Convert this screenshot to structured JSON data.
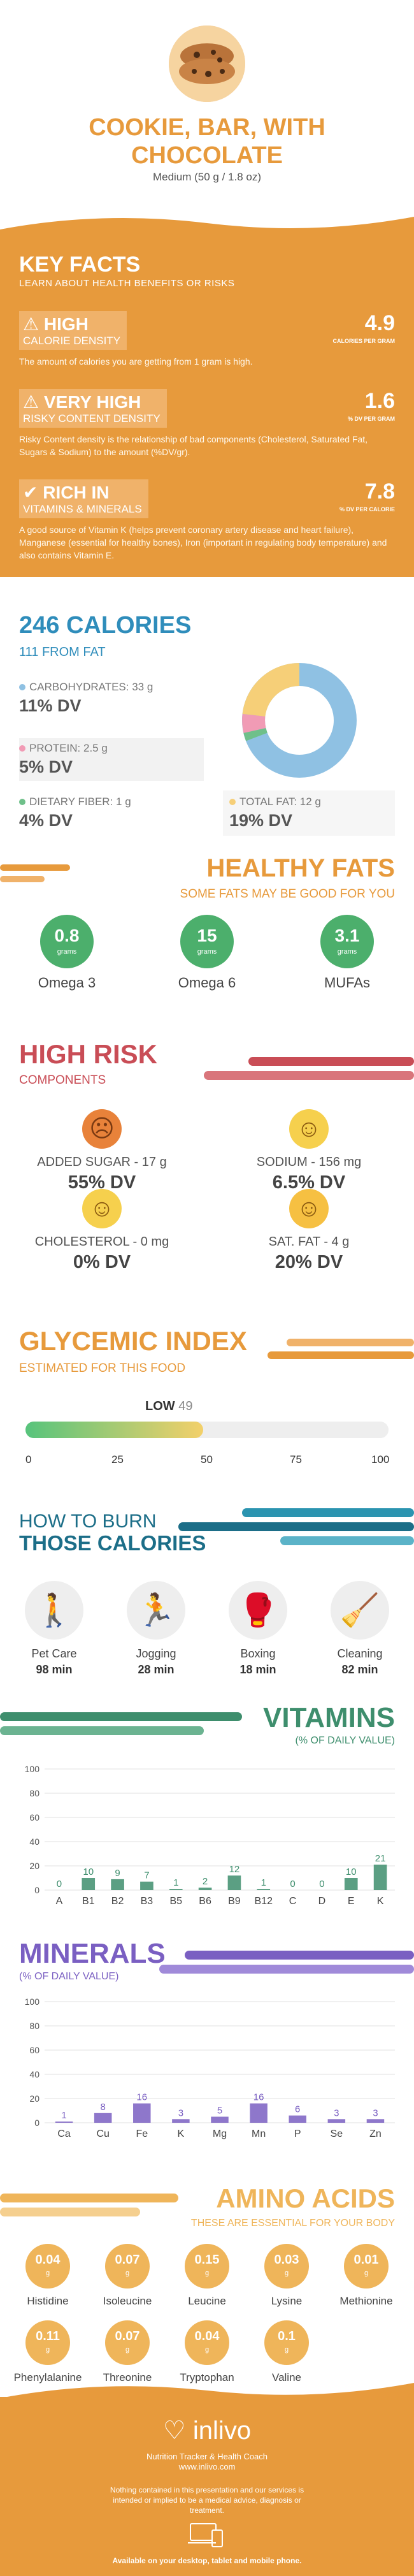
{
  "header": {
    "title_line1": "COOKIE, BAR, WITH",
    "title_line2": "CHOCOLATE",
    "serving": "Medium (50 g / 1.8 oz)"
  },
  "key_facts": {
    "title": "KEY FACTS",
    "subtitle": "LEARN ABOUT HEALTH BENEFITS OR RISKS",
    "items": [
      {
        "level": "HIGH",
        "label": "CALORIE DENSITY",
        "value": "4.9",
        "unit": "CALORIES PER GRAM",
        "desc": "The amount of calories you are getting from 1 gram is high."
      },
      {
        "level": "VERY HIGH",
        "label": "RISKY CONTENT DENSITY",
        "value": "1.6",
        "unit": "% DV PER GRAM",
        "desc": "Risky Content density is the relationship of bad components (Cholesterol, Saturated Fat, Sugars & Sodium) to the amount (%DV/gr)."
      },
      {
        "level": "RICH IN",
        "label": "VITAMINS & MINERALS",
        "value": "7.8",
        "unit": "% DV PER CALORIE",
        "desc": "A good source of Vitamin K (helps prevent coronary artery disease and heart failure), Manganese (essential for healthy bones), Iron (important in regulating body temperature) and also contains Vitamin E."
      }
    ]
  },
  "calories": {
    "title": "246 CALORIES",
    "from_fat": "111 FROM FAT",
    "nutrients": [
      {
        "name": "CARBOHYDRATES: 33 g",
        "dv": "11% DV",
        "color": "#8fc1e3"
      },
      {
        "name": "PROTEIN: 2.5 g",
        "dv": "5% DV",
        "color": "#f19bb5"
      },
      {
        "name": "DIETARY FIBER: 1 g",
        "dv": "4% DV",
        "color": "#6fc08a"
      },
      {
        "name": "TOTAL FAT: 12 g",
        "dv": "19% DV",
        "color": "#f6cf78"
      }
    ]
  },
  "healthy_fats": {
    "title": "HEALTHY FATS",
    "subtitle": "SOME FATS MAY BE GOOD FOR YOU",
    "items": [
      {
        "value": "0.8",
        "unit": "grams",
        "label": "Omega 3"
      },
      {
        "value": "15",
        "unit": "grams",
        "label": "Omega 6"
      },
      {
        "value": "3.1",
        "unit": "grams",
        "label": "MUFAs"
      }
    ]
  },
  "high_risk": {
    "title": "HIGH RISK",
    "subtitle": "COMPONENTS",
    "items": [
      {
        "label": "ADDED SUGAR - 17 g",
        "dv": "55% DV",
        "face": "☹",
        "color": "#e8823a"
      },
      {
        "label": "SODIUM - 156 mg",
        "dv": "6.5% DV",
        "face": "☺",
        "color": "#f6d04d"
      },
      {
        "label": "CHOLESTEROL - 0 mg",
        "dv": "0% DV",
        "face": "☺",
        "color": "#f6d04d"
      },
      {
        "label": "SAT. FAT - 4 g",
        "dv": "20% DV",
        "face": "☺",
        "color": "#f6c042"
      }
    ]
  },
  "glycemic": {
    "title": "GLYCEMIC INDEX",
    "subtitle": "ESTIMATED FOR THIS FOOD",
    "level": "LOW",
    "value": "49",
    "ticks": [
      "0",
      "25",
      "50",
      "75",
      "100"
    ]
  },
  "burn": {
    "title1": "HOW TO BURN",
    "title2": "THOSE CALORIES",
    "items": [
      {
        "label": "Pet Care",
        "minutes": "98 min",
        "icon": "dog-walk-icon",
        "glyph": "🚶"
      },
      {
        "label": "Jogging",
        "minutes": "28 min",
        "icon": "jogging-icon",
        "glyph": "🏃"
      },
      {
        "label": "Boxing",
        "minutes": "18 min",
        "icon": "boxing-icon",
        "glyph": "🥊"
      },
      {
        "label": "Cleaning",
        "minutes": "82 min",
        "icon": "cleaning-icon",
        "glyph": "🧹"
      }
    ]
  },
  "vitamins": {
    "title": "VITAMINS",
    "subtitle": "(% OF DAILY VALUE)"
  },
  "minerals": {
    "title": "MINERALS",
    "subtitle": "(% OF DAILY VALUE)"
  },
  "chart_data": [
    {
      "type": "bar",
      "title": "VITAMINS",
      "categories": [
        "A",
        "B1",
        "B2",
        "B3",
        "B5",
        "B6",
        "B9",
        "B12",
        "C",
        "D",
        "E",
        "K"
      ],
      "values": [
        0,
        10,
        9,
        7,
        1,
        2,
        12,
        1,
        0,
        0,
        10,
        21
      ],
      "ylim": [
        0,
        100
      ],
      "yticks": [
        0,
        20,
        40,
        60,
        80,
        100
      ],
      "color": "#3e8e6d"
    },
    {
      "type": "bar",
      "title": "MINERALS",
      "categories": [
        "Ca",
        "Cu",
        "Fe",
        "K",
        "Mg",
        "Mn",
        "P",
        "Se",
        "Zn"
      ],
      "values": [
        1,
        8,
        16,
        3,
        5,
        16,
        6,
        3,
        3
      ],
      "ylim": [
        0,
        100
      ],
      "yticks": [
        0,
        20,
        40,
        60,
        80,
        100
      ],
      "color": "#7a5fc2"
    }
  ],
  "amino": {
    "title": "AMINO ACIDS",
    "subtitle": "THESE ARE ESSENTIAL FOR YOUR BODY",
    "unit": "g",
    "items": [
      {
        "label": "Histidine",
        "value": "0.04"
      },
      {
        "label": "Isoleucine",
        "value": "0.07"
      },
      {
        "label": "Leucine",
        "value": "0.15"
      },
      {
        "label": "Lysine",
        "value": "0.03"
      },
      {
        "label": "Methionine",
        "value": "0.01"
      },
      {
        "label": "Phenylalanine",
        "value": "0.11"
      },
      {
        "label": "Threonine",
        "value": "0.07"
      },
      {
        "label": "Tryptophan",
        "value": "0.04"
      },
      {
        "label": "Valine",
        "value": "0.1"
      }
    ]
  },
  "footer": {
    "brand": "inlivo",
    "tagline": "Nutrition Tracker & Health Coach",
    "url": "www.inlivo.com",
    "disclaimer": "Nothing contained in this presentation and our services is intended or implied to be a medical advice, diagnosis or treatment.",
    "available": "Available on your desktop, tablet and mobile phone."
  }
}
